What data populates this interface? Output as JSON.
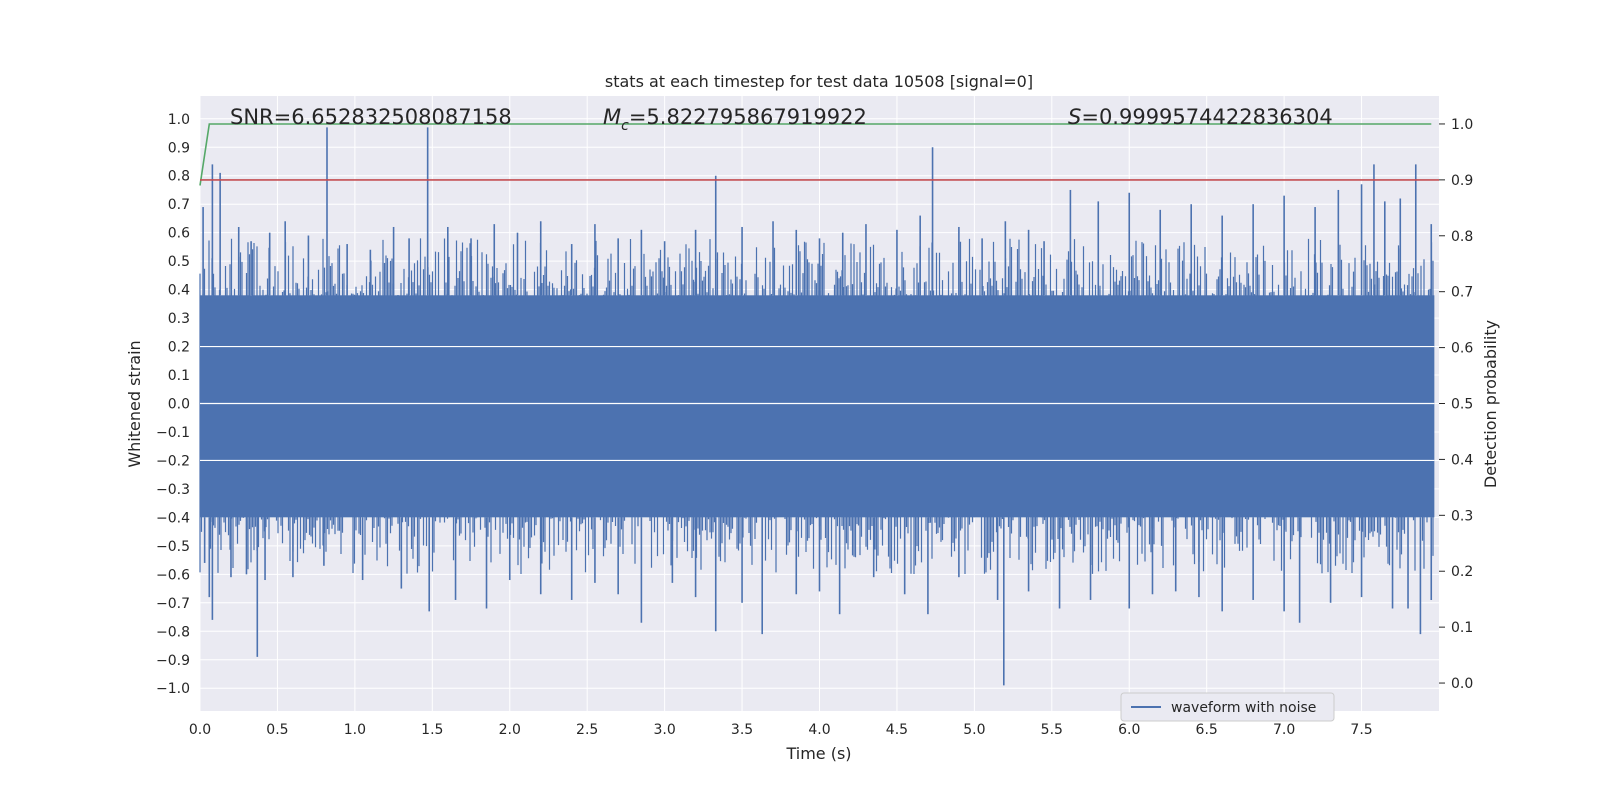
{
  "chart_data": {
    "type": "line",
    "title": "stats at each timestep for test data 10508 [signal=0]",
    "xlabel": "Time (s)",
    "ylabel": "Whitened strain",
    "y2label": "Detection probability",
    "xlim": [
      0.0,
      8.0
    ],
    "ylim": [
      -1.08,
      1.08
    ],
    "y2lim": [
      -0.05,
      1.05
    ],
    "xticks": [
      0.0,
      0.5,
      1.0,
      1.5,
      2.0,
      2.5,
      3.0,
      3.5,
      4.0,
      4.5,
      5.0,
      5.5,
      6.0,
      6.5,
      7.0,
      7.5
    ],
    "xtick_labels": [
      "0.0",
      "0.5",
      "1.0",
      "1.5",
      "2.0",
      "2.5",
      "3.0",
      "3.5",
      "4.0",
      "4.5",
      "5.0",
      "5.5",
      "6.0",
      "6.5",
      "7.0",
      "7.5"
    ],
    "yticks": [
      -1.0,
      -0.9,
      -0.8,
      -0.7,
      -0.6,
      -0.5,
      -0.4,
      -0.3,
      -0.2,
      -0.1,
      0.0,
      0.1,
      0.2,
      0.3,
      0.4,
      0.5,
      0.6,
      0.7,
      0.8,
      0.9,
      1.0
    ],
    "ytick_labels": [
      "−1.0",
      "−0.9",
      "−0.8",
      "−0.7",
      "−0.6",
      "−0.5",
      "−0.4",
      "−0.3",
      "−0.2",
      "−0.1",
      "0.0",
      "0.1",
      "0.2",
      "0.3",
      "0.4",
      "0.5",
      "0.6",
      "0.7",
      "0.8",
      "0.9",
      "1.0"
    ],
    "y2ticks": [
      0.0,
      0.1,
      0.2,
      0.3,
      0.4,
      0.5,
      0.6,
      0.7,
      0.8,
      0.9,
      1.0
    ],
    "y2tick_labels": [
      "0.0",
      "0.1",
      "0.2",
      "0.3",
      "0.4",
      "0.5",
      "0.6",
      "0.7",
      "0.8",
      "0.9",
      "1.0"
    ],
    "grid": true,
    "legend": {
      "position": "lower-right",
      "entries": [
        "waveform with noise"
      ]
    },
    "series": [
      {
        "name": "waveform with noise",
        "axis": "left",
        "color": "#4c72b0",
        "band": {
          "x_start": 0.0,
          "x_end": 7.97,
          "dense_upper": 0.38,
          "dense_lower": -0.4
        },
        "peaks": [
          [
            0.02,
            0.69
          ],
          [
            0.08,
            0.84
          ],
          [
            0.13,
            0.81
          ],
          [
            0.25,
            0.62
          ],
          [
            0.33,
            0.57
          ],
          [
            0.45,
            0.6
          ],
          [
            0.55,
            0.64
          ],
          [
            0.7,
            0.59
          ],
          [
            0.82,
            0.97
          ],
          [
            0.95,
            0.56
          ],
          [
            1.1,
            0.54
          ],
          [
            1.25,
            0.62
          ],
          [
            1.35,
            0.58
          ],
          [
            1.47,
            0.97
          ],
          [
            1.6,
            0.62
          ],
          [
            1.75,
            0.58
          ],
          [
            1.9,
            0.63
          ],
          [
            2.05,
            0.6
          ],
          [
            2.2,
            0.64
          ],
          [
            2.4,
            0.56
          ],
          [
            2.55,
            0.63
          ],
          [
            2.7,
            0.58
          ],
          [
            2.85,
            0.61
          ],
          [
            3.0,
            0.57
          ],
          [
            3.2,
            0.61
          ],
          [
            3.33,
            0.8
          ],
          [
            3.5,
            0.62
          ],
          [
            3.7,
            0.64
          ],
          [
            3.85,
            0.61
          ],
          [
            4.0,
            0.58
          ],
          [
            4.15,
            0.6
          ],
          [
            4.3,
            0.63
          ],
          [
            4.5,
            0.61
          ],
          [
            4.65,
            0.66
          ],
          [
            4.73,
            0.9
          ],
          [
            4.9,
            0.62
          ],
          [
            5.05,
            0.58
          ],
          [
            5.2,
            0.64
          ],
          [
            5.35,
            0.61
          ],
          [
            5.45,
            0.57
          ],
          [
            5.62,
            0.75
          ],
          [
            5.8,
            0.71
          ],
          [
            6.0,
            0.74
          ],
          [
            6.2,
            0.68
          ],
          [
            6.4,
            0.7
          ],
          [
            6.6,
            0.66
          ],
          [
            6.8,
            0.7
          ],
          [
            7.0,
            0.73
          ],
          [
            7.2,
            0.69
          ],
          [
            7.35,
            0.75
          ],
          [
            7.5,
            0.77
          ],
          [
            7.58,
            0.84
          ],
          [
            7.65,
            0.71
          ],
          [
            7.75,
            0.72
          ],
          [
            7.85,
            0.84
          ],
          [
            7.95,
            0.63
          ]
        ],
        "troughs": [
          [
            0.03,
            -0.56
          ],
          [
            0.06,
            -0.68
          ],
          [
            0.08,
            -0.76
          ],
          [
            0.2,
            -0.61
          ],
          [
            0.3,
            -0.6
          ],
          [
            0.37,
            -0.89
          ],
          [
            0.42,
            -0.62
          ],
          [
            0.6,
            -0.61
          ],
          [
            0.8,
            -0.57
          ],
          [
            1.05,
            -0.62
          ],
          [
            1.3,
            -0.65
          ],
          [
            1.48,
            -0.73
          ],
          [
            1.65,
            -0.69
          ],
          [
            1.85,
            -0.72
          ],
          [
            2.0,
            -0.62
          ],
          [
            2.2,
            -0.67
          ],
          [
            2.4,
            -0.69
          ],
          [
            2.55,
            -0.63
          ],
          [
            2.7,
            -0.67
          ],
          [
            2.85,
            -0.77
          ],
          [
            3.05,
            -0.63
          ],
          [
            3.2,
            -0.68
          ],
          [
            3.33,
            -0.8
          ],
          [
            3.5,
            -0.7
          ],
          [
            3.63,
            -0.81
          ],
          [
            3.85,
            -0.67
          ],
          [
            4.0,
            -0.66
          ],
          [
            4.13,
            -0.74
          ],
          [
            4.35,
            -0.61
          ],
          [
            4.55,
            -0.67
          ],
          [
            4.7,
            -0.74
          ],
          [
            4.9,
            -0.61
          ],
          [
            5.15,
            -0.69
          ],
          [
            5.19,
            -0.99
          ],
          [
            5.35,
            -0.66
          ],
          [
            5.55,
            -0.72
          ],
          [
            5.75,
            -0.69
          ],
          [
            6.0,
            -0.72
          ],
          [
            6.15,
            -0.67
          ],
          [
            6.3,
            -0.66
          ],
          [
            6.45,
            -0.68
          ],
          [
            6.6,
            -0.73
          ],
          [
            6.8,
            -0.69
          ],
          [
            7.0,
            -0.73
          ],
          [
            7.1,
            -0.77
          ],
          [
            7.3,
            -0.7
          ],
          [
            7.5,
            -0.68
          ],
          [
            7.7,
            -0.72
          ],
          [
            7.8,
            -0.72
          ],
          [
            7.88,
            -0.81
          ],
          [
            7.95,
            -0.69
          ]
        ]
      },
      {
        "name": "detection probability",
        "axis": "right",
        "color": "#55a868",
        "x": [
          0.0,
          0.06,
          7.95
        ],
        "y": [
          0.89,
          1.0,
          1.0
        ]
      },
      {
        "name": "threshold",
        "axis": "right",
        "color": "#c44e52",
        "x": [
          0.0,
          8.0
        ],
        "y": [
          0.9,
          0.9
        ]
      }
    ],
    "annotations": {
      "snr_label": "SNR=6.652832508087158",
      "mc_symbol": "M",
      "mc_subscript": "c",
      "mc_value": "=5.822795867919922",
      "s_symbol": "S",
      "s_value": "=0.9999574422836304"
    }
  }
}
